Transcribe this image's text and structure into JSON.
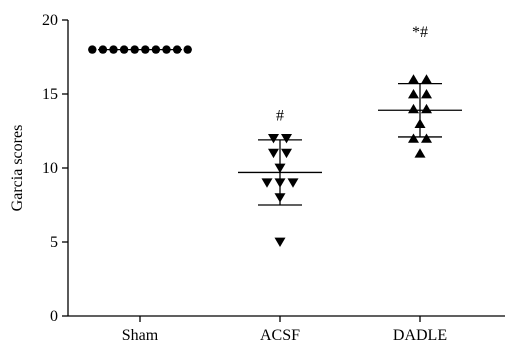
{
  "chart_data": {
    "type": "scatter",
    "ylabel": "Garcia scores",
    "ylim": [
      0,
      20
    ],
    "yticks": [
      0,
      5,
      10,
      15,
      20
    ],
    "categories": [
      "Sham",
      "ACSF",
      "DADLE"
    ],
    "series": [
      {
        "category": "Sham",
        "marker": "circle",
        "values": [
          18,
          18,
          18,
          18,
          18,
          18,
          18,
          18,
          18,
          18
        ],
        "mean": 18,
        "sd_upper": 18,
        "sd_lower": 18,
        "annotation": ""
      },
      {
        "category": "ACSF",
        "marker": "triangle-down",
        "values": [
          12,
          12,
          11,
          11,
          10,
          9,
          9,
          9,
          8,
          5
        ],
        "mean": 9.7,
        "sd_upper": 11.9,
        "sd_lower": 7.5,
        "annotation": "#"
      },
      {
        "category": "DADLE",
        "marker": "triangle-up",
        "values": [
          16,
          16,
          15,
          15,
          14,
          14,
          13,
          12,
          12,
          11
        ],
        "mean": 13.9,
        "sd_upper": 15.7,
        "sd_lower": 12.1,
        "annotation": "*#"
      }
    ]
  }
}
